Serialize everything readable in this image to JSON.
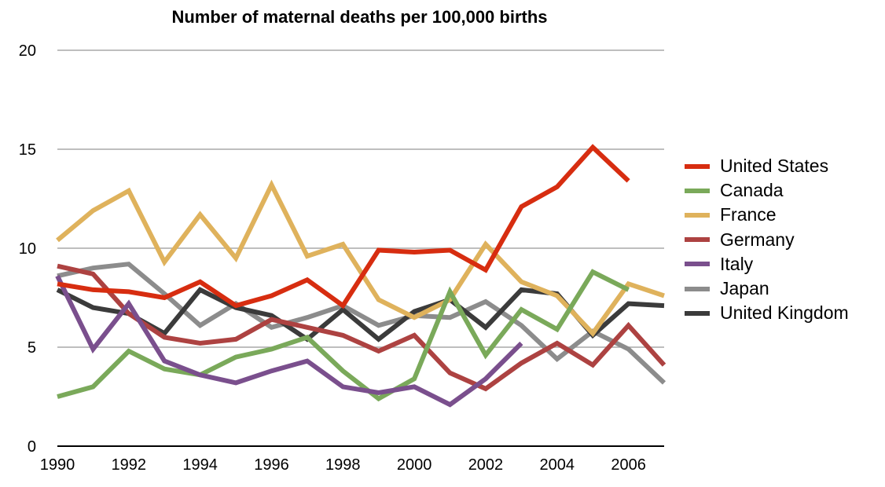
{
  "chart_data": {
    "type": "line",
    "title": "Number of maternal deaths per 100,000 births",
    "xlabel": "",
    "ylabel": "",
    "xlim": [
      1990,
      2007
    ],
    "ylim": [
      0,
      20
    ],
    "x_ticks": [
      "1990",
      "1992",
      "1994",
      "1996",
      "1998",
      "2000",
      "2002",
      "2004",
      "2006"
    ],
    "y_ticks": [
      "0",
      "5",
      "10",
      "15",
      "20"
    ],
    "grid": true,
    "legend_position": "right",
    "x": [
      1990,
      1991,
      1992,
      1993,
      1994,
      1995,
      1996,
      1997,
      1998,
      1999,
      2000,
      2001,
      2002,
      2003,
      2004,
      2005,
      2006,
      2007
    ],
    "series": [
      {
        "name": "Japan",
        "color": "#8c8c8c",
        "values": [
          8.6,
          9.0,
          9.2,
          7.7,
          6.1,
          7.2,
          6.0,
          6.5,
          7.1,
          6.1,
          6.6,
          6.5,
          7.3,
          6.1,
          4.4,
          5.8,
          4.9,
          3.2
        ]
      },
      {
        "name": "United Kingdom",
        "color": "#3b3b3b",
        "values": [
          7.9,
          7.0,
          6.7,
          5.7,
          7.9,
          7.0,
          6.6,
          5.4,
          6.9,
          5.4,
          6.8,
          7.4,
          6.0,
          7.9,
          7.7,
          5.6,
          7.2,
          7.1
        ]
      },
      {
        "name": "France",
        "color": "#dfb25c",
        "values": [
          10.4,
          11.9,
          12.9,
          9.3,
          11.7,
          9.5,
          13.2,
          9.6,
          10.2,
          7.4,
          6.5,
          7.4,
          10.2,
          8.3,
          7.6,
          5.7,
          8.2,
          7.6
        ]
      },
      {
        "name": "Germany",
        "color": "#ad4241",
        "values": [
          9.1,
          8.7,
          6.7,
          5.5,
          5.2,
          5.4,
          6.4,
          6.0,
          5.6,
          4.8,
          5.6,
          3.7,
          2.9,
          4.2,
          5.2,
          4.1,
          6.1,
          4.1
        ]
      },
      {
        "name": "Canada",
        "color": "#7aa95a",
        "values": [
          2.5,
          3.0,
          4.8,
          3.9,
          3.6,
          4.5,
          4.9,
          5.5,
          3.8,
          2.4,
          3.4,
          7.8,
          4.6,
          6.9,
          5.9,
          8.8,
          7.9,
          null
        ]
      },
      {
        "name": "Italy",
        "color": "#7a4f8d",
        "values": [
          8.6,
          4.9,
          7.2,
          4.3,
          3.6,
          3.2,
          3.8,
          4.3,
          3.0,
          2.7,
          3.0,
          2.1,
          3.4,
          5.2,
          null,
          null,
          null,
          null
        ]
      },
      {
        "name": "United States",
        "color": "#d72d10",
        "values": [
          8.2,
          7.9,
          7.8,
          7.5,
          8.3,
          7.1,
          7.6,
          8.4,
          7.1,
          9.9,
          9.8,
          9.9,
          8.9,
          12.1,
          13.1,
          15.1,
          13.4,
          null
        ]
      }
    ],
    "legend_order": [
      "United States",
      "Canada",
      "France",
      "Germany",
      "Italy",
      "Japan",
      "United Kingdom"
    ]
  }
}
